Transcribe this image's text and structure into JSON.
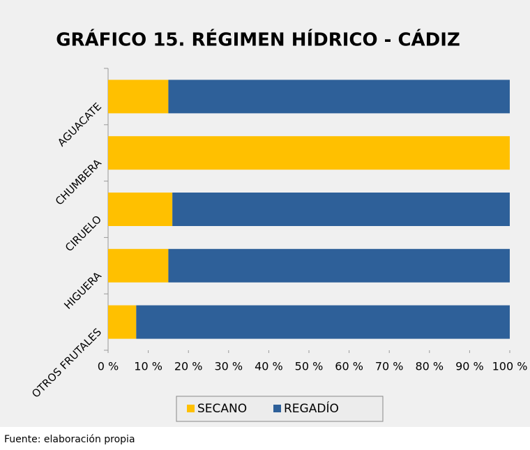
{
  "chart_data": {
    "type": "stacked_barh",
    "title": "GRÁFICO 15. RÉGIMEN HÍDRICO - CÁDIZ",
    "categories": [
      "AGUACATE",
      "CHUMBERA",
      "CIRUELO",
      "HIGUERA",
      "OTROS FRUTALES"
    ],
    "series": [
      {
        "name": "SECANO",
        "color": "#ffc000",
        "values": [
          15,
          100,
          16,
          15,
          7
        ]
      },
      {
        "name": "REGADÍO",
        "color": "#2e6099",
        "values": [
          85,
          0,
          84,
          85,
          93
        ]
      }
    ],
    "xlim": [
      0,
      100
    ],
    "xticks": [
      {
        "value": 0,
        "label": "0 %"
      },
      {
        "value": 10,
        "label": "10 %"
      },
      {
        "value": 20,
        "label": "20 %"
      },
      {
        "value": 30,
        "label": "30 %"
      },
      {
        "value": 40,
        "label": "40 %"
      },
      {
        "value": 50,
        "label": "50 %"
      },
      {
        "value": 60,
        "label": "60 %"
      },
      {
        "value": 70,
        "label": "70 %"
      },
      {
        "value": 80,
        "label": "80 %"
      },
      {
        "value": 90,
        "label": "90 %"
      },
      {
        "value": 100,
        "label": "100 %"
      }
    ],
    "legend": "bottom",
    "footer": "Fuente: elaboración propia"
  }
}
